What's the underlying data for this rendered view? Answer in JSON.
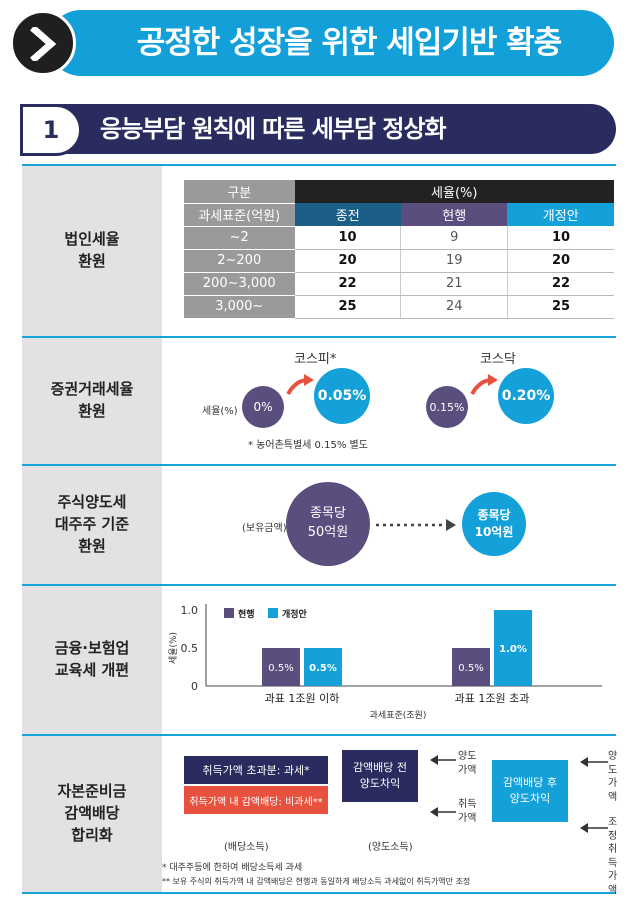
{
  "header": {
    "title": "공정한 성장을 위한 세입기반 확충"
  },
  "section": {
    "number": "1",
    "title": "응능부담 원칙에 따른 세부담 정상화"
  },
  "rows": {
    "corporate": {
      "label": "법인세율\n환원",
      "table": {
        "h_category": "구분",
        "h_rate": "세율(%)",
        "h_base": "과세표준(억원)",
        "h_old": "종전",
        "h_current": "현행",
        "h_new": "개정안",
        "rows": [
          {
            "bracket": "~2",
            "old": "10",
            "current": "9",
            "new": "10"
          },
          {
            "bracket": "2~200",
            "old": "20",
            "current": "19",
            "new": "20"
          },
          {
            "bracket": "200~3,000",
            "old": "22",
            "current": "21",
            "new": "22"
          },
          {
            "bracket": "3,000~",
            "old": "25",
            "current": "24",
            "new": "25"
          }
        ]
      }
    },
    "securities": {
      "label": "증권거래세율\n환원",
      "kospi": {
        "name": "코스피*",
        "from": "0%",
        "to": "0.05%"
      },
      "kosdaq": {
        "name": "코스닥",
        "from": "0.15%",
        "to": "0.20%"
      },
      "rate_label": "세율(%)",
      "note": "* 농어촌특별세 0.15% 별도"
    },
    "stock_transfer": {
      "label": "주식양도세\n대주주 기준\n환원",
      "holding_label": "(보유금액)",
      "from_line1": "종목당",
      "from_line2": "50억원",
      "to_line1": "종목당",
      "to_line2": "10억원"
    },
    "financial": {
      "label": "금융·보험업\n교육세 개편"
    },
    "reserve": {
      "label": "자본준비금\n감액배당\n합리화",
      "box_taxed": "취득가액 초과분: 과세*",
      "box_nontaxed": "취득가액 내 감액배당: 비과세**",
      "dividend_income": "(배당소득)",
      "before_line1": "감액배당 전",
      "before_line2": "양도차익",
      "after_line1": "감액배당 후",
      "after_line2": "양도차익",
      "transfer_price_1": "양도\n가액",
      "acq_price_1": "취득\n가액",
      "transfer_price_2": "양도\n가액",
      "adj_acq_price": "조정\n취득\n가액",
      "transfer_income": "(양도소득)",
      "note1": "* 대주주등에 한하여 배당소득세 과세",
      "note2": "** 보유 주식의 취득가액 내 감액배당은 현행과 동일하게 배당소득 과세없이 취득가액만 조정"
    }
  },
  "chart_data": {
    "type": "bar",
    "categories": [
      "과표 1조원 이하",
      "과표 1조원 초과"
    ],
    "series": [
      {
        "name": "현행",
        "values": [
          0.5,
          0.5
        ],
        "labels": [
          "0.5%",
          "0.5%"
        ],
        "color": "#5a4e7e"
      },
      {
        "name": "개정안",
        "values": [
          0.5,
          1.0
        ],
        "labels": [
          "0.5%",
          "1.0%"
        ],
        "color": "#14a1d9"
      }
    ],
    "ylabel": "세율(%)",
    "xlabel": "과세표준(조원)",
    "yticks": [
      "1.0",
      "0.5",
      "0"
    ],
    "ylim": [
      0,
      1.0
    ]
  },
  "colors": {
    "accent_blue": "#14a1d9",
    "navy": "#2a2b5e",
    "purple": "#5a4e7e",
    "red": "#e9513f"
  }
}
